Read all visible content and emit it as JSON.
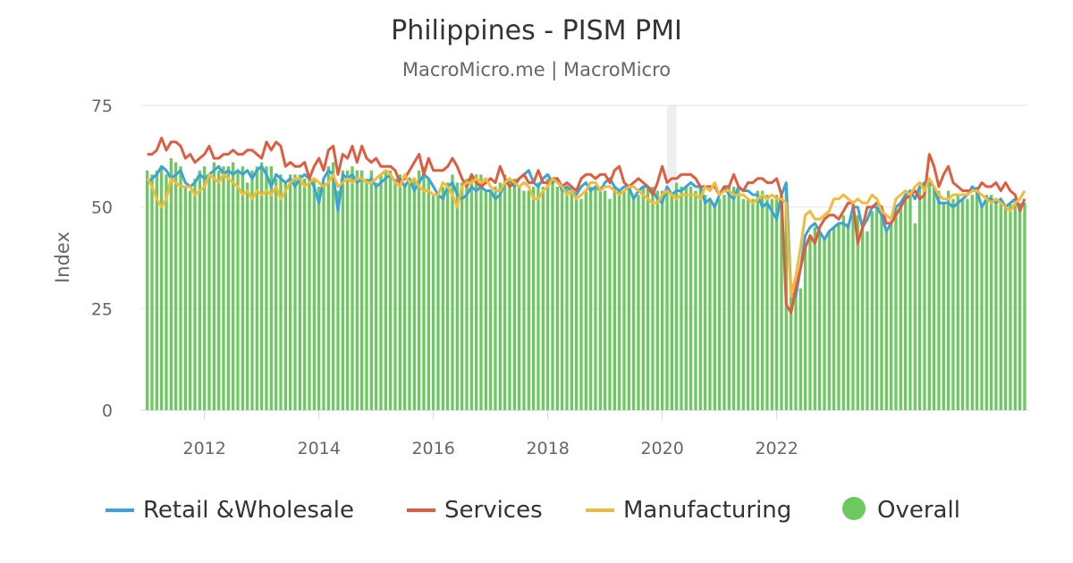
{
  "chart_data": {
    "type": "line",
    "title": "Philippines - PISM PMI",
    "subtitle": "MacroMicro.me | MacroMicro",
    "ylabel": "Index",
    "ylim": [
      0,
      75
    ],
    "y_ticks": [
      "0",
      "25",
      "50",
      "75"
    ],
    "x_ticks": [
      {
        "label": "2012",
        "year": 2012
      },
      {
        "label": "2014",
        "year": 2014
      },
      {
        "label": "2016",
        "year": 2016
      },
      {
        "label": "2018",
        "year": 2018
      },
      {
        "label": "2020",
        "year": 2020
      },
      {
        "label": "2022",
        "year": 2022
      }
    ],
    "x_start": "2011-01",
    "shaded_period": {
      "start": "2020-02",
      "end": "2020-04"
    },
    "grid": true,
    "legend_position": "bottom",
    "series": [
      {
        "name": "Retail &Wholesale",
        "type": "line",
        "color": "#3aa4d8",
        "values": [
          56,
          57,
          58,
          60,
          59,
          57,
          58,
          59,
          56,
          55,
          56,
          58,
          57,
          58,
          59,
          60,
          58,
          59,
          58,
          59,
          58,
          59,
          57,
          59,
          60,
          58,
          55,
          58,
          57,
          56,
          57,
          55,
          57,
          58,
          57,
          55,
          51,
          57,
          59,
          58,
          49,
          58,
          57,
          58,
          56,
          57,
          56,
          57,
          55,
          56,
          57,
          58,
          56,
          57,
          55,
          57,
          54,
          56,
          58,
          57,
          55,
          53,
          52,
          55,
          56,
          53,
          52,
          53,
          55,
          54,
          55,
          54,
          54,
          52,
          53,
          56,
          57,
          55,
          57,
          58,
          59,
          56,
          55,
          57,
          58,
          56,
          57,
          54,
          55,
          54,
          53,
          55,
          56,
          54,
          55,
          54,
          56,
          57,
          55,
          54,
          55,
          55,
          52,
          54,
          55,
          55,
          54,
          52,
          51,
          55,
          53,
          54,
          54,
          55,
          56,
          55,
          55,
          51,
          52,
          50,
          53,
          55,
          53,
          52,
          55,
          54,
          54,
          53,
          53,
          50,
          51,
          49,
          47,
          53,
          56,
          29,
          28,
          35,
          43,
          45,
          46,
          44,
          42,
          44,
          45,
          46,
          46,
          45,
          50,
          50,
          45,
          47,
          50,
          50,
          48,
          44,
          46,
          50,
          51,
          53,
          54,
          52,
          55,
          56,
          56,
          55,
          51,
          51,
          51,
          50,
          51,
          52,
          53,
          55,
          54,
          50,
          52,
          52,
          51,
          52,
          50,
          51,
          52,
          50,
          51
        ]
      },
      {
        "name": "Services",
        "type": "line",
        "color": "#e05c40",
        "values": [
          63,
          63,
          64,
          67,
          64,
          66,
          66,
          65,
          62,
          63,
          61,
          62,
          63,
          65,
          62,
          62,
          63,
          63,
          64,
          63,
          63,
          64,
          64,
          63,
          62,
          66,
          64,
          66,
          65,
          60,
          61,
          60,
          60,
          61,
          57,
          60,
          62,
          59,
          64,
          65,
          58,
          63,
          62,
          65,
          61,
          65,
          62,
          61,
          62,
          60,
          60,
          60,
          59,
          56,
          57,
          59,
          61,
          63,
          58,
          62,
          59,
          59,
          59,
          60,
          62,
          60,
          57,
          55,
          58,
          56,
          55,
          56,
          57,
          56,
          60,
          57,
          55,
          56,
          57,
          58,
          56,
          56,
          59,
          56,
          56,
          57,
          57,
          55,
          56,
          55,
          54,
          57,
          58,
          58,
          57,
          58,
          58,
          56,
          59,
          60,
          56,
          55,
          56,
          57,
          56,
          55,
          53,
          56,
          60,
          56,
          57,
          57,
          58,
          58,
          58,
          57,
          55,
          55,
          55,
          55,
          53,
          55,
          55,
          58,
          55,
          54,
          56,
          56,
          57,
          57,
          56,
          56,
          57,
          53,
          26,
          24,
          30,
          35,
          40,
          43,
          41,
          45,
          47,
          48,
          48,
          47,
          49,
          51,
          51,
          41,
          45,
          50,
          50,
          51,
          50,
          46,
          46,
          48,
          50,
          52,
          53,
          54,
          52,
          53,
          63,
          60,
          55,
          58,
          60,
          56,
          55,
          54,
          54,
          54,
          54,
          56,
          55,
          55,
          56,
          54,
          56,
          54,
          53,
          49,
          52
        ]
      },
      {
        "name": "Manufacturing",
        "type": "line",
        "color": "#f3bb3d",
        "values": [
          57,
          55,
          52,
          50,
          52,
          57,
          56,
          55,
          55,
          55,
          53,
          54,
          55,
          58,
          57,
          56,
          58,
          57,
          56,
          55,
          53,
          54,
          52,
          54,
          53,
          54,
          53,
          55,
          52,
          54,
          56,
          57,
          57,
          55,
          56,
          57,
          56,
          55,
          56,
          58,
          55,
          56,
          57,
          56,
          57,
          57,
          56,
          56,
          57,
          58,
          59,
          58,
          56,
          55,
          58,
          56,
          57,
          55,
          54,
          54,
          53,
          53,
          56,
          55,
          53,
          50,
          55,
          56,
          56,
          57,
          56,
          57,
          55,
          54,
          54,
          56,
          57,
          56,
          55,
          56,
          55,
          52,
          52,
          54,
          55,
          57,
          56,
          55,
          53,
          54,
          52,
          53,
          54,
          56,
          56,
          54,
          55,
          55,
          54,
          53,
          54,
          55,
          55,
          54,
          53,
          52,
          51,
          51,
          53,
          54,
          53,
          52,
          53,
          53,
          53,
          53,
          52,
          55,
          54,
          56,
          53,
          54,
          54,
          53,
          53,
          53,
          52,
          51,
          52,
          53,
          52,
          53,
          52,
          52,
          51,
          28,
          33,
          40,
          48,
          49,
          47,
          47,
          48,
          49,
          52,
          52,
          53,
          52,
          51,
          52,
          51,
          51,
          53,
          52,
          49,
          48,
          47,
          52,
          53,
          54,
          53,
          55,
          56,
          54,
          57,
          55,
          53,
          52,
          52,
          53,
          53,
          53,
          53,
          54,
          54,
          53,
          52,
          51,
          52,
          51,
          50,
          49,
          51,
          52,
          54
        ]
      },
      {
        "name": "Overall",
        "type": "bar",
        "color": "#6cc95f",
        "values": [
          59,
          58,
          59,
          60,
          58,
          62,
          61,
          60,
          55,
          54,
          57,
          59,
          60,
          58,
          61,
          59,
          60,
          60,
          61,
          59,
          60,
          56,
          59,
          60,
          61,
          60,
          60,
          57,
          58,
          56,
          58,
          58,
          58,
          57,
          57,
          57,
          55,
          56,
          60,
          61,
          54,
          59,
          59,
          60,
          59,
          59,
          57,
          59,
          56,
          58,
          59,
          59,
          57,
          58,
          55,
          57,
          57,
          59,
          60,
          57,
          53,
          53,
          55,
          56,
          58,
          56,
          56,
          57,
          58,
          58,
          58,
          54,
          54,
          55,
          56,
          58,
          57,
          57,
          55,
          54,
          54,
          55,
          56,
          55,
          57,
          57,
          55,
          55,
          55,
          55,
          52,
          52,
          54,
          55,
          55,
          55,
          54,
          52,
          55,
          54,
          54,
          55,
          53,
          53,
          55,
          55,
          55,
          54,
          54,
          55,
          53,
          56,
          55,
          55,
          55,
          54,
          55,
          53,
          52,
          51,
          52,
          53,
          55,
          55,
          55,
          52,
          52,
          52,
          54,
          54,
          53,
          52,
          53,
          54,
          55,
          31,
          29,
          30,
          41,
          43,
          45,
          44,
          42,
          44,
          45,
          46,
          48,
          46,
          48,
          48,
          45,
          44,
          49,
          50,
          48,
          45,
          46,
          50,
          51,
          53,
          54,
          46,
          55,
          56,
          57,
          55,
          54,
          51,
          54,
          52,
          53,
          52,
          52,
          53,
          55,
          50,
          53,
          53,
          52,
          51,
          50,
          51,
          52,
          51,
          51
        ]
      }
    ]
  }
}
